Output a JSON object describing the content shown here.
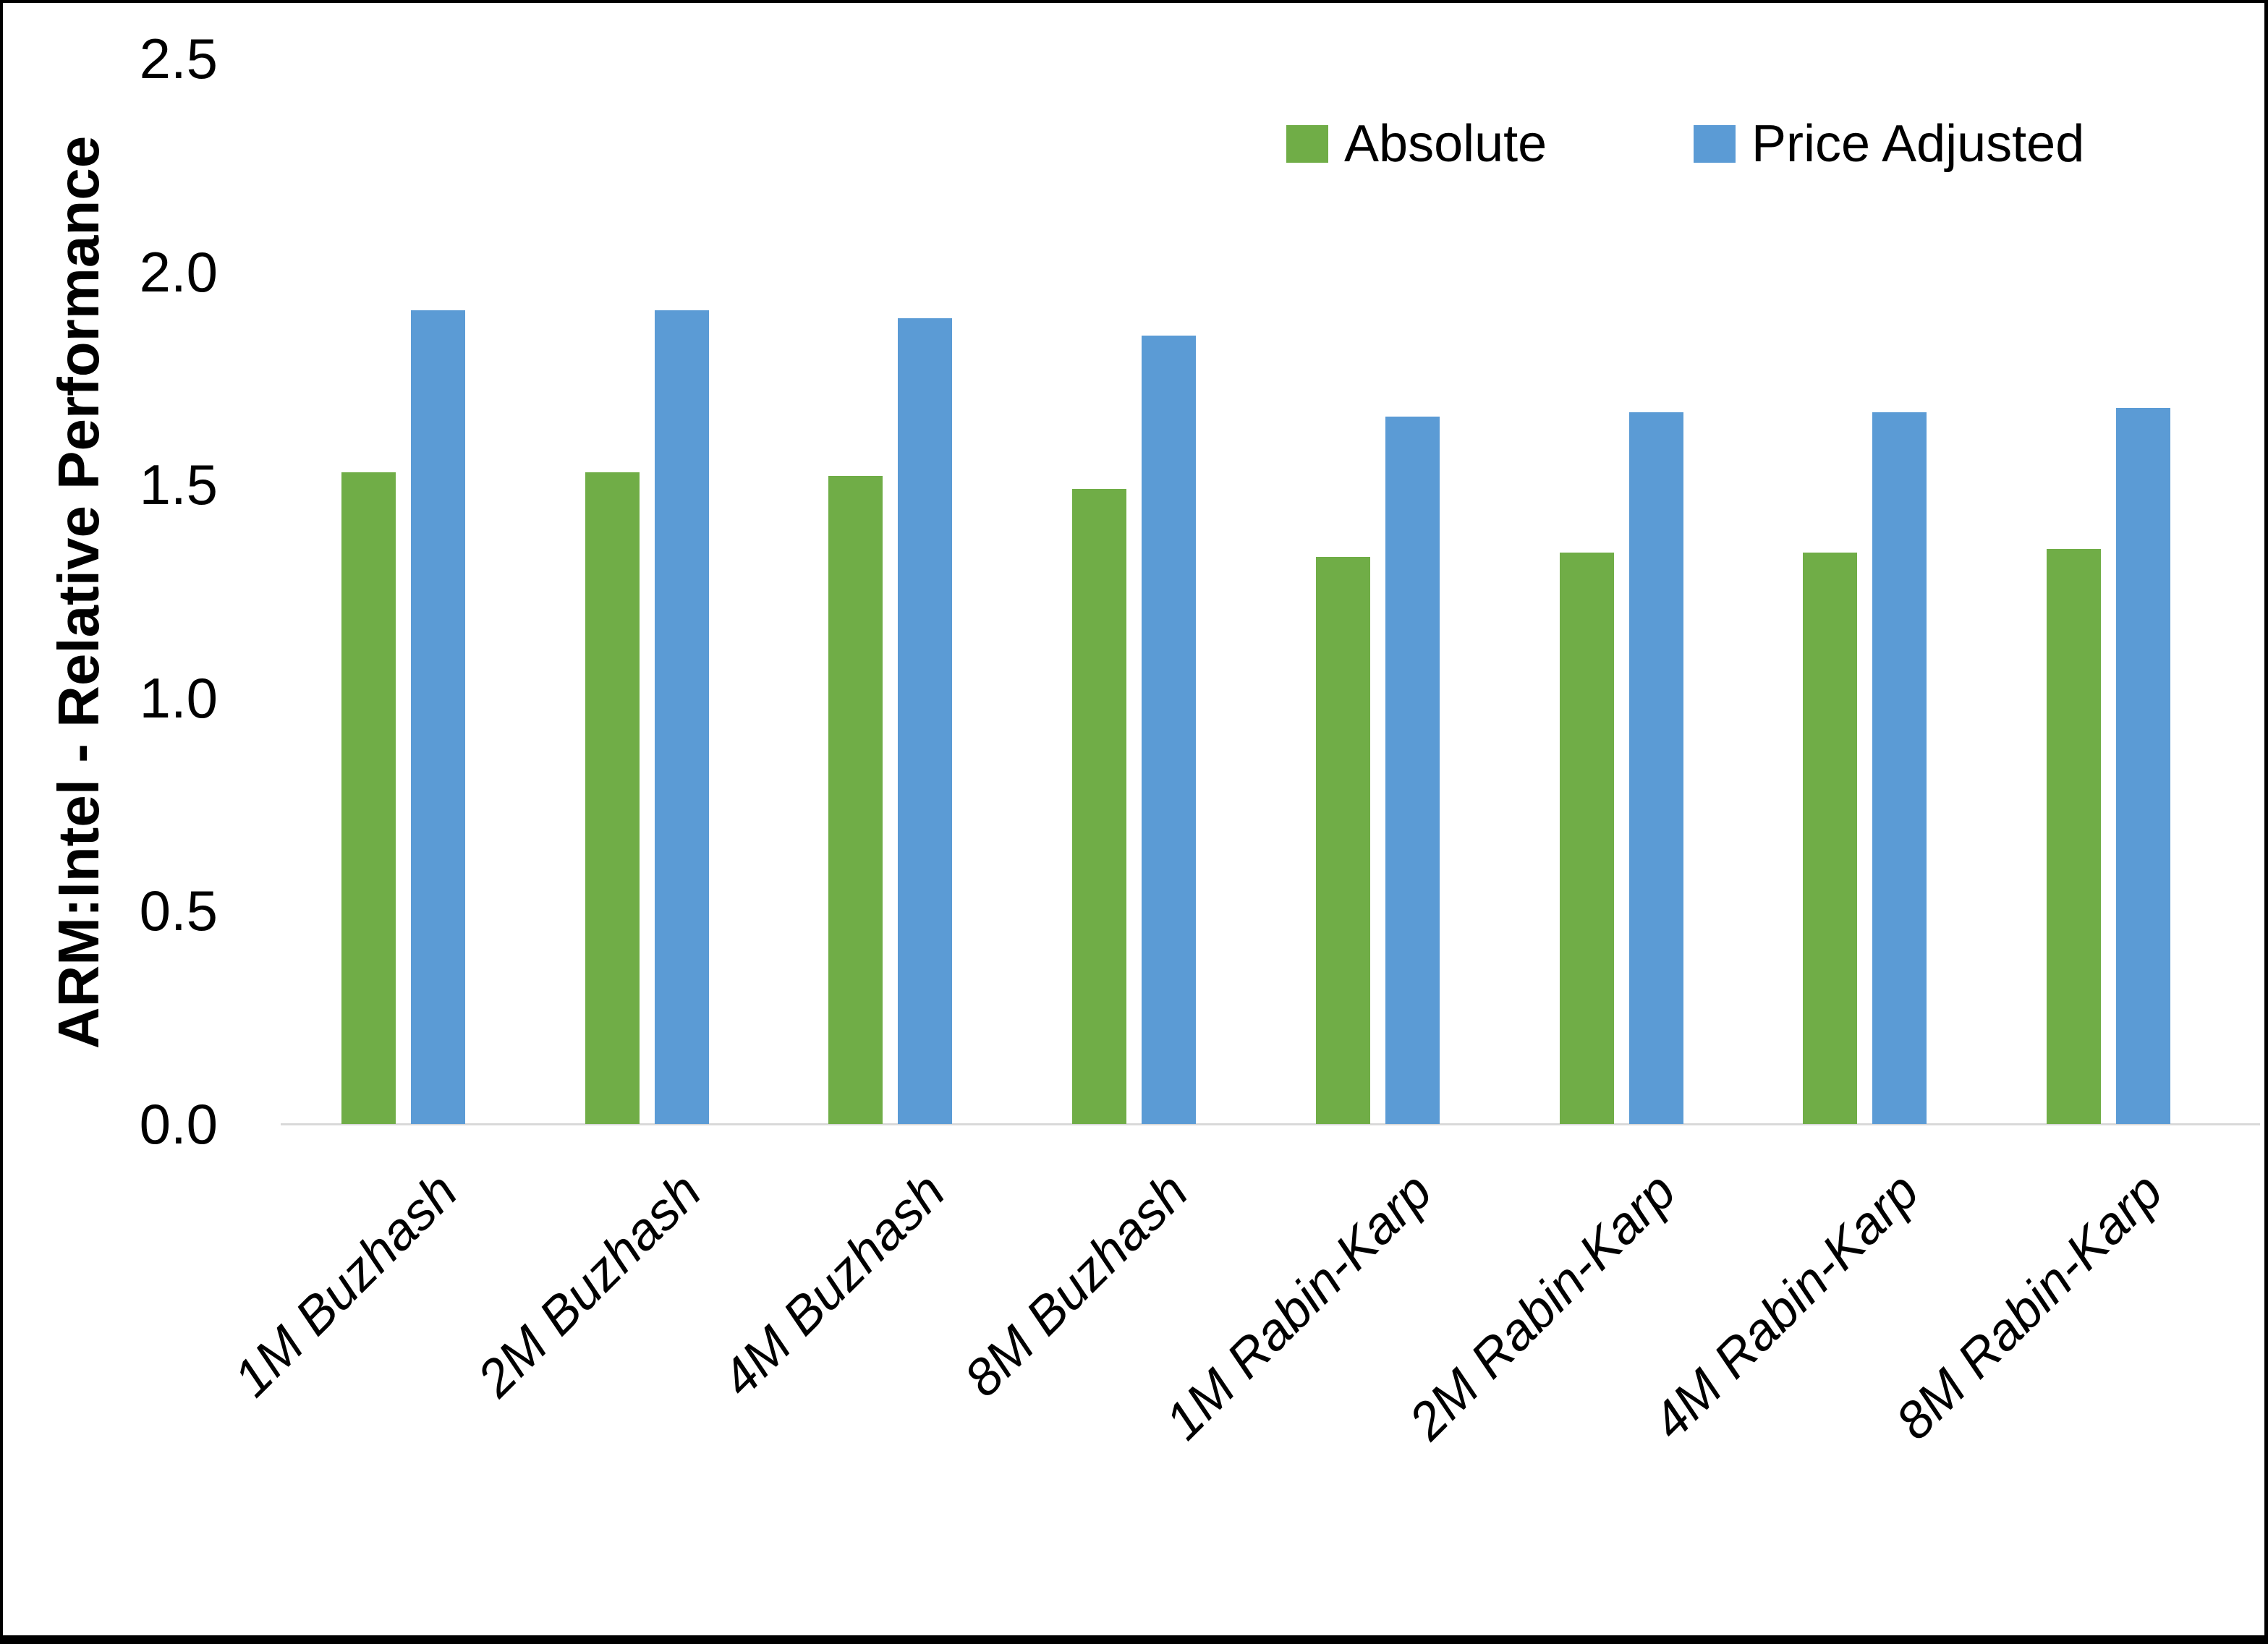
{
  "chart_data": {
    "type": "bar",
    "title": "",
    "xlabel": "",
    "ylabel": "ARM:Intel - Relative Performance",
    "categories": [
      "1M Buzhash",
      "2M Buzhash",
      "4M Buzhash",
      "8M Buzhash",
      "1M Rabin-Karp",
      "2M Rabin-Karp",
      "4M Rabin-Karp",
      "8M Rabin-Karp"
    ],
    "series": [
      {
        "name": "Absolute",
        "color": "#70AD47",
        "values": [
          1.53,
          1.53,
          1.52,
          1.49,
          1.33,
          1.34,
          1.34,
          1.35
        ]
      },
      {
        "name": "Price Adjusted",
        "color": "#5B9BD5",
        "values": [
          1.91,
          1.91,
          1.89,
          1.85,
          1.66,
          1.67,
          1.67,
          1.68
        ]
      }
    ],
    "ylim": [
      0,
      2.5
    ],
    "yticks": [
      "0.0",
      "0.5",
      "1.0",
      "1.5",
      "2.0",
      "2.5"
    ],
    "grid": false,
    "legend_position": "top-right",
    "axis_line_color": "#D9D9D9",
    "category_label_angle_deg": 45,
    "category_label_style": "italic"
  }
}
